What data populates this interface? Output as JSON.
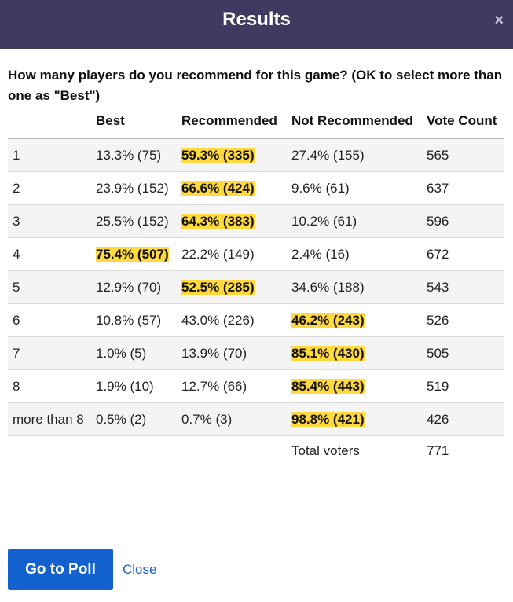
{
  "header": {
    "title": "Results",
    "close_glyph": "×"
  },
  "question": "How many players do you recommend for this game? (OK to select more than one as \"Best\")",
  "table": {
    "columns": [
      "",
      "Best",
      "Recommended",
      "Not Recommended",
      "Vote Count"
    ],
    "rows": [
      {
        "players": "1",
        "best": "13.3% (75)",
        "recommended": "59.3% (335)",
        "not_recommended": "27.4% (155)",
        "votes": "565",
        "winner": "recommended"
      },
      {
        "players": "2",
        "best": "23.9% (152)",
        "recommended": "66.6% (424)",
        "not_recommended": "9.6% (61)",
        "votes": "637",
        "winner": "recommended"
      },
      {
        "players": "3",
        "best": "25.5% (152)",
        "recommended": "64.3% (383)",
        "not_recommended": "10.2% (61)",
        "votes": "596",
        "winner": "recommended"
      },
      {
        "players": "4",
        "best": "75.4% (507)",
        "recommended": "22.2% (149)",
        "not_recommended": "2.4% (16)",
        "votes": "672",
        "winner": "best"
      },
      {
        "players": "5",
        "best": "12.9% (70)",
        "recommended": "52.5% (285)",
        "not_recommended": "34.6% (188)",
        "votes": "543",
        "winner": "recommended"
      },
      {
        "players": "6",
        "best": "10.8% (57)",
        "recommended": "43.0% (226)",
        "not_recommended": "46.2% (243)",
        "votes": "526",
        "winner": "not_recommended"
      },
      {
        "players": "7",
        "best": "1.0% (5)",
        "recommended": "13.9% (70)",
        "not_recommended": "85.1% (430)",
        "votes": "505",
        "winner": "not_recommended"
      },
      {
        "players": "8",
        "best": "1.9% (10)",
        "recommended": "12.7% (66)",
        "not_recommended": "85.4% (443)",
        "votes": "519",
        "winner": "not_recommended"
      },
      {
        "players": "more than 8",
        "best": "0.5% (2)",
        "recommended": "0.7% (3)",
        "not_recommended": "98.8% (421)",
        "votes": "426",
        "winner": "not_recommended"
      }
    ],
    "total_label": "Total voters",
    "total_value": "771"
  },
  "footer": {
    "go_button": "Go to Poll",
    "close_link": "Close"
  },
  "colors": {
    "header_bg": "#3f3a60",
    "highlight": "#ffd93d",
    "primary": "#1261cf"
  },
  "icons": {
    "close": "close-icon"
  }
}
